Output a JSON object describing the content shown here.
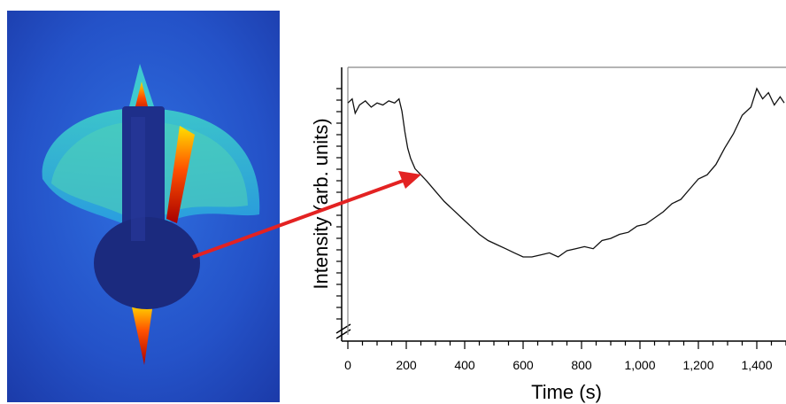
{
  "chart_data": {
    "type": "line",
    "title": "",
    "xlabel": "Time (s)",
    "ylabel": "Intensity (arb. units)",
    "xlim": [
      0,
      1500
    ],
    "x_ticks": [
      0,
      200,
      400,
      600,
      800,
      1000,
      1200,
      1400
    ],
    "x_tick_labels": [
      "0",
      "200",
      "400",
      "600",
      "800",
      "1,000",
      "1,200",
      "1,400"
    ],
    "y_axis_break": true,
    "grid": false,
    "series": [
      {
        "x": [
          0,
          15,
          25,
          40,
          60,
          80,
          100,
          120,
          140,
          160,
          175,
          185,
          195,
          205,
          215,
          230,
          250,
          270,
          300,
          330,
          360,
          390,
          420,
          450,
          480,
          510,
          540,
          570,
          600,
          630,
          660,
          690,
          720,
          750,
          780,
          810,
          840,
          870,
          900,
          930,
          960,
          990,
          1020,
          1050,
          1080,
          1110,
          1140,
          1170,
          1200,
          1230,
          1260,
          1290,
          1320,
          1350,
          1380,
          1400,
          1420,
          1440,
          1460,
          1480,
          1500
        ],
        "y": [
          0.8,
          0.82,
          0.75,
          0.79,
          0.81,
          0.78,
          0.8,
          0.79,
          0.81,
          0.8,
          0.82,
          0.76,
          0.66,
          0.58,
          0.53,
          0.48,
          0.45,
          0.42,
          0.37,
          0.32,
          0.28,
          0.24,
          0.2,
          0.16,
          0.13,
          0.11,
          0.09,
          0.07,
          0.05,
          0.05,
          0.06,
          0.07,
          0.05,
          0.08,
          0.09,
          0.1,
          0.09,
          0.13,
          0.14,
          0.16,
          0.17,
          0.2,
          0.21,
          0.24,
          0.27,
          0.31,
          0.33,
          0.38,
          0.43,
          0.45,
          0.5,
          0.58,
          0.65,
          0.74,
          0.78,
          0.87,
          0.82,
          0.85,
          0.79,
          0.83,
          0.8
        ]
      }
    ]
  }
}
